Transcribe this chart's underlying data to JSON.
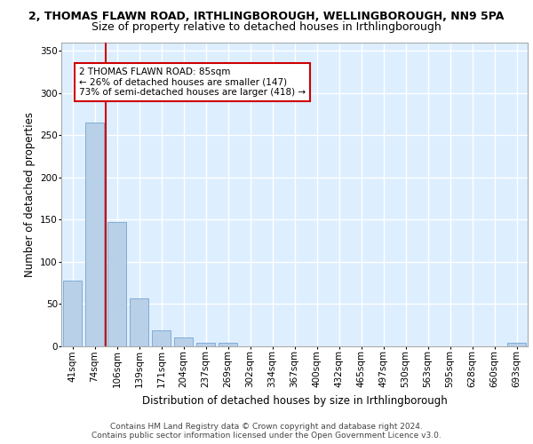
{
  "title": "2, THOMAS FLAWN ROAD, IRTHLINGBOROUGH, WELLINGBOROUGH, NN9 5PA",
  "subtitle": "Size of property relative to detached houses in Irthlingborough",
  "xlabel": "Distribution of detached houses by size in Irthlingborough",
  "ylabel": "Number of detached properties",
  "footer1": "Contains HM Land Registry data © Crown copyright and database right 2024.",
  "footer2": "Contains public sector information licensed under the Open Government Licence v3.0.",
  "categories": [
    "41sqm",
    "74sqm",
    "106sqm",
    "139sqm",
    "171sqm",
    "204sqm",
    "237sqm",
    "269sqm",
    "302sqm",
    "334sqm",
    "367sqm",
    "400sqm",
    "432sqm",
    "465sqm",
    "497sqm",
    "530sqm",
    "563sqm",
    "595sqm",
    "628sqm",
    "660sqm",
    "693sqm"
  ],
  "values": [
    78,
    265,
    147,
    57,
    19,
    10,
    4,
    4,
    0,
    0,
    0,
    0,
    0,
    0,
    0,
    0,
    0,
    0,
    0,
    0,
    4
  ],
  "bar_color": "#b8d0e8",
  "bar_edge_color": "#6699cc",
  "property_line_x": 1.5,
  "annotation_line1": "2 THOMAS FLAWN ROAD: 85sqm",
  "annotation_line2": "← 26% of detached houses are smaller (147)",
  "annotation_line3": "73% of semi-detached houses are larger (418) →",
  "annotation_box_color": "#ffffff",
  "annotation_box_edge_color": "#cc0000",
  "property_line_color": "#cc0000",
  "fig_bg_color": "#ffffff",
  "plot_bg_color": "#ddeeff",
  "grid_color": "#ffffff",
  "ylim": [
    0,
    360
  ],
  "yticks": [
    0,
    50,
    100,
    150,
    200,
    250,
    300,
    350
  ],
  "title_fontsize": 9,
  "subtitle_fontsize": 9,
  "xlabel_fontsize": 8.5,
  "ylabel_fontsize": 8.5,
  "tick_fontsize": 7.5,
  "annotation_fontsize": 7.5,
  "footer_fontsize": 6.5
}
